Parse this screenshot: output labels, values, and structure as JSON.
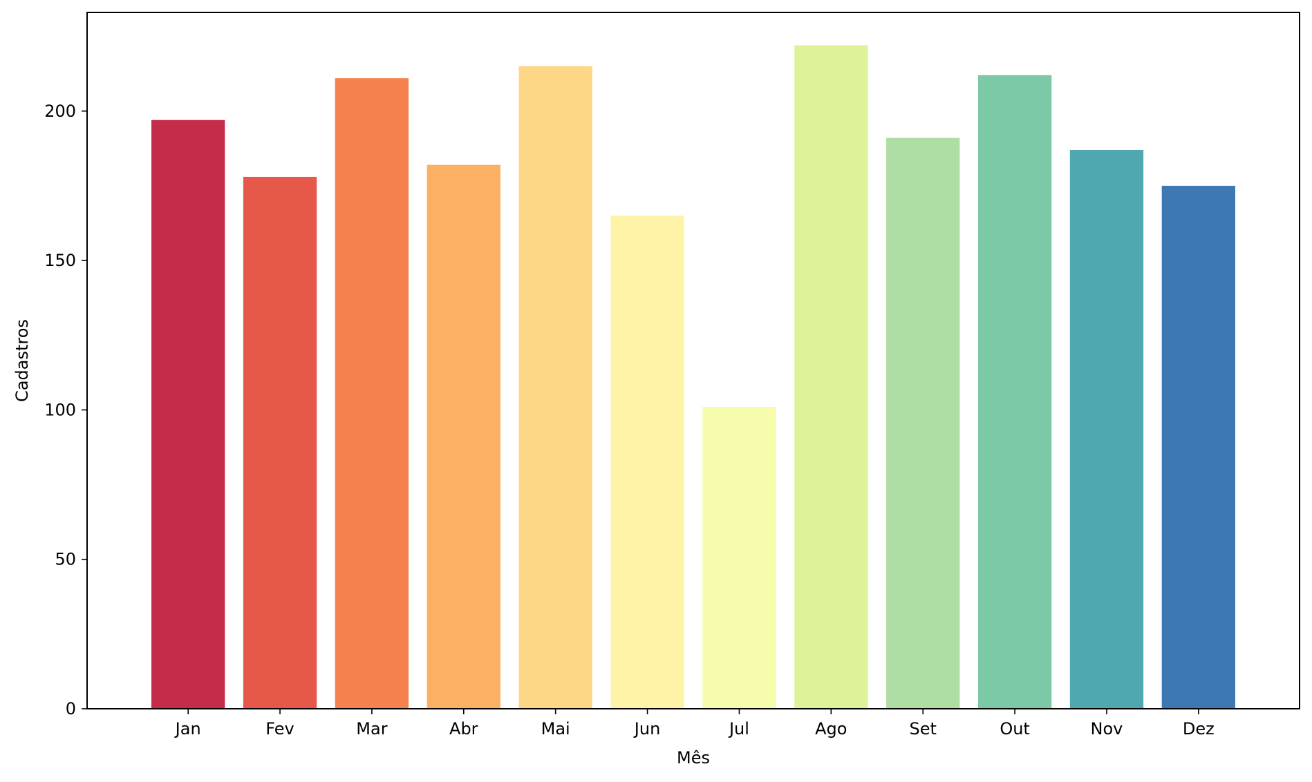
{
  "chart_data": {
    "type": "bar",
    "title": "",
    "xlabel": "Mês",
    "ylabel": "Cadastros",
    "categories": [
      "Jan",
      "Fev",
      "Mar",
      "Abr",
      "Mai",
      "Jun",
      "Jul",
      "Ago",
      "Set",
      "Out",
      "Nov",
      "Dez"
    ],
    "values": [
      197,
      178,
      211,
      182,
      215,
      165,
      101,
      222,
      191,
      212,
      187,
      175
    ],
    "colors": [
      "#c52c4a",
      "#e5584a",
      "#f5824e",
      "#fcb064",
      "#fed786",
      "#fef3a6",
      "#f7fbac",
      "#def29a",
      "#aedea3",
      "#7bc9a6",
      "#4fa7b0",
      "#3d78b4"
    ],
    "ylim": [
      0,
      233
    ],
    "yticks": [
      0,
      50,
      100,
      150,
      200
    ],
    "grid": false,
    "legend": "none"
  }
}
